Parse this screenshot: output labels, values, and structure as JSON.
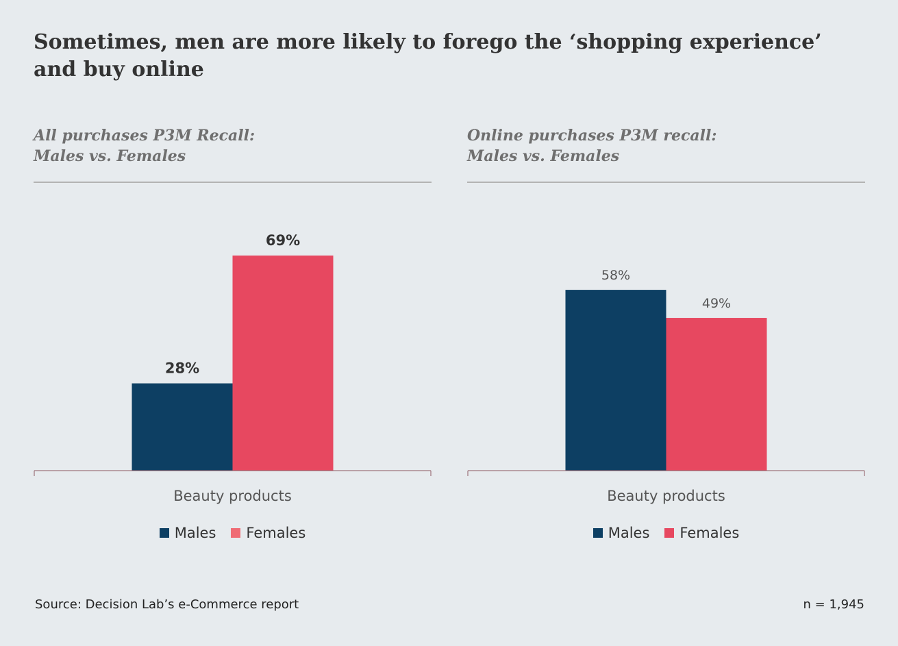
{
  "title": "Sometimes, men are more likely to forego the ‘shopping experience’ and buy online",
  "colors": {
    "males": "#0d3f63",
    "females": "#e74860",
    "females_legend": "#ef6b74",
    "axis": "#8e5a62"
  },
  "chart_data": [
    {
      "type": "bar",
      "title_lines": [
        "All purchases P3M Recall:",
        "Males vs. Females"
      ],
      "categories": [
        "Beauty products"
      ],
      "series": [
        {
          "name": "Males",
          "values": [
            28
          ],
          "labels": [
            "28%"
          ]
        },
        {
          "name": "Females",
          "values": [
            69
          ],
          "labels": [
            "69%"
          ]
        }
      ],
      "ylim": [
        0,
        80
      ],
      "legend": "bottom",
      "grid": false
    },
    {
      "type": "bar",
      "title_lines": [
        "Online purchases P3M recall:",
        "Males vs. Females"
      ],
      "categories": [
        "Beauty products"
      ],
      "series": [
        {
          "name": "Males",
          "values": [
            58
          ],
          "labels": [
            "58%"
          ]
        },
        {
          "name": "Females",
          "values": [
            49
          ],
          "labels": [
            "49%"
          ]
        }
      ],
      "ylim": [
        0,
        80
      ],
      "legend": "bottom",
      "grid": false
    }
  ],
  "footer": {
    "source": "Source: Decision Lab’s e-Commerce report",
    "n": "n = 1,945"
  }
}
